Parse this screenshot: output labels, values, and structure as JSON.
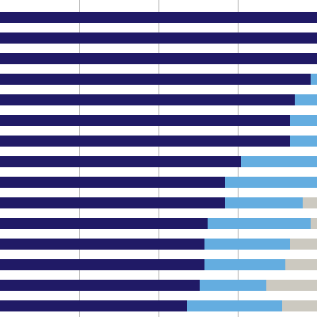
{
  "colors": {
    "background": "#ffffff",
    "grid": "#b3b3b3",
    "series_1": "#201a66",
    "series_2": "#64ade0",
    "series_3": "#ccc9c0"
  },
  "chart_data": {
    "type": "bar",
    "orientation": "horizontal",
    "stacked": true,
    "grid": true,
    "legend": "none",
    "xlim": [
      0,
      100
    ],
    "gridlines_at_fraction_of_view": [
      0.25,
      0.5,
      0.75
    ],
    "categories": [
      "",
      "",
      "",
      "",
      "",
      "",
      "",
      "",
      "",
      "",
      "",
      "",
      "",
      "",
      ""
    ],
    "series": [
      {
        "color": "#201a66",
        "values": [
          100,
          100,
          100,
          98,
          93,
          91.5,
          91.5,
          76,
          71,
          71,
          65.5,
          64.5,
          64.5,
          63,
          59
        ]
      },
      {
        "color": "#64ade0",
        "values": [
          0,
          0,
          0,
          2,
          7,
          8.5,
          8.5,
          24,
          29,
          24.5,
          32.5,
          27,
          25.5,
          21,
          30
        ]
      },
      {
        "color": "#ccc9c0",
        "values": [
          0,
          0,
          0,
          0,
          0,
          0,
          0,
          0,
          0,
          4.5,
          2,
          8.5,
          10,
          16,
          11
        ]
      }
    ]
  }
}
